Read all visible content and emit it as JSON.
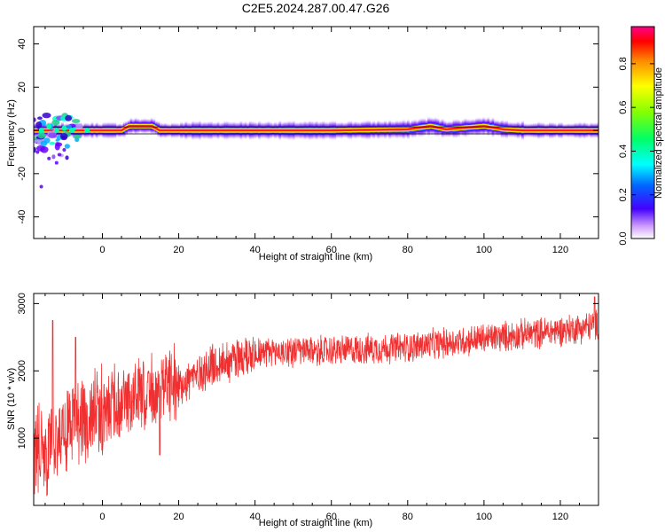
{
  "figure": {
    "title": "C2E5.2024.287.00.47.G26"
  },
  "chart_data": [
    {
      "type": "heatmap",
      "title": "C2E5.2024.287.00.47.G26",
      "xlabel": "Height of straight line (km)",
      "ylabel": "Frequency (Hz)",
      "xlim": [
        -18,
        130
      ],
      "ylim": [
        -50,
        48
      ],
      "xticks": [
        0,
        20,
        40,
        60,
        80,
        100,
        120
      ],
      "xtick_labels": [
        "0",
        "20",
        "40",
        "60",
        "80",
        "100",
        "120"
      ],
      "yticks": [
        -40,
        -20,
        0,
        20,
        40
      ],
      "ytick_labels": [
        "-40",
        "-20",
        "0",
        "20",
        "40"
      ],
      "ridge": {
        "x": [
          -18,
          -10,
          -5,
          0,
          5,
          7,
          10,
          13,
          15,
          20,
          40,
          60,
          80,
          86,
          90,
          100,
          105,
          110,
          120,
          130
        ],
        "freq": [
          0,
          0,
          0,
          0,
          0,
          2,
          2,
          2,
          0,
          0,
          0,
          0,
          0.5,
          2,
          0.5,
          2,
          0.5,
          0,
          0,
          0
        ]
      },
      "colorbar": {
        "label": "Normalized spectral amplitude",
        "range": [
          0,
          0.97
        ],
        "ticks": [
          0.0,
          0.2,
          0.4,
          0.6,
          0.8
        ],
        "tick_labels": [
          "0.0",
          "0.2",
          "0.4",
          "0.6",
          "0.8"
        ]
      }
    },
    {
      "type": "line",
      "xlabel": "Height of straight line (km)",
      "ylabel": "SNR (10 * v/v)",
      "xlim": [
        -18,
        130
      ],
      "ylim": [
        0,
        3150
      ],
      "xticks": [
        0,
        20,
        40,
        60,
        80,
        100,
        120
      ],
      "xtick_labels": [
        "0",
        "20",
        "40",
        "60",
        "80",
        "100",
        "120"
      ],
      "yticks": [
        1000,
        2000,
        3000
      ],
      "ytick_labels": [
        "1000",
        "2000",
        "3000"
      ],
      "color": "#f03030",
      "series": [
        {
          "name": "SNR",
          "trend": {
            "x": [
              -18,
              -10,
              0,
              10,
              20,
              30,
              40,
              60,
              80,
              100,
              120,
              130
            ],
            "y": [
              700,
              1100,
              1450,
              1600,
              1800,
              2100,
              2280,
              2300,
              2350,
              2480,
              2600,
              2680
            ]
          },
          "spikes": [
            {
              "x": -13,
              "y": 2750
            },
            {
              "x": -7,
              "y": 2500
            },
            {
              "x": 15,
              "y": 750
            },
            {
              "x": 129,
              "y": 3100
            }
          ]
        }
      ]
    }
  ]
}
